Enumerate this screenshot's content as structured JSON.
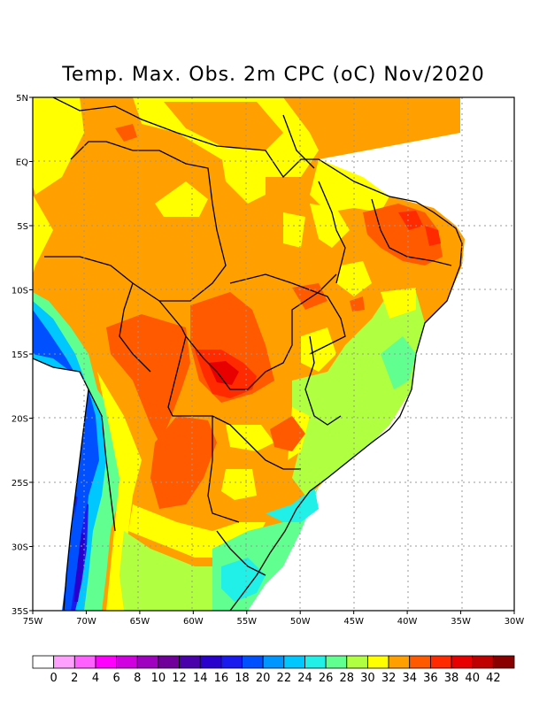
{
  "title": "Temp. Max. Obs. 2m CPC (oC) Nov/2020",
  "map": {
    "lon_range": [
      -75,
      -30
    ],
    "lat_range": [
      -35,
      5
    ],
    "lon_ticks": [
      {
        "value": -75,
        "label": "75W"
      },
      {
        "value": -70,
        "label": "70W"
      },
      {
        "value": -65,
        "label": "65W"
      },
      {
        "value": -60,
        "label": "60W"
      },
      {
        "value": -55,
        "label": "55W"
      },
      {
        "value": -50,
        "label": "50W"
      },
      {
        "value": -45,
        "label": "45W"
      },
      {
        "value": -40,
        "label": "40W"
      },
      {
        "value": -35,
        "label": "35W"
      },
      {
        "value": -30,
        "label": "30W"
      }
    ],
    "lat_ticks": [
      {
        "value": 5,
        "label": "5N"
      },
      {
        "value": 0,
        "label": "EQ"
      },
      {
        "value": -5,
        "label": "5S"
      },
      {
        "value": -10,
        "label": "10S"
      },
      {
        "value": -15,
        "label": "15S"
      },
      {
        "value": -20,
        "label": "20S"
      },
      {
        "value": -25,
        "label": "25S"
      },
      {
        "value": -30,
        "label": "30S"
      },
      {
        "value": -35,
        "label": "35S"
      }
    ]
  },
  "colorbar": {
    "colors": [
      "#ffffff",
      "#ffa0ff",
      "#ff60ff",
      "#ff00ff",
      "#d000e0",
      "#a000c0",
      "#700099",
      "#4a00aa",
      "#2a00cc",
      "#1a1aee",
      "#0050ff",
      "#0096ff",
      "#00c8ff",
      "#20f0e8",
      "#60ff90",
      "#b0ff40",
      "#ffff00",
      "#ffa000",
      "#ff5a00",
      "#ff2a00",
      "#e80000",
      "#c00000",
      "#8a0000"
    ],
    "labels": [
      "0",
      "2",
      "4",
      "6",
      "8",
      "10",
      "12",
      "14",
      "16",
      "18",
      "20",
      "22",
      "24",
      "26",
      "28",
      "30",
      "32",
      "34",
      "36",
      "38",
      "40",
      "42"
    ]
  }
}
